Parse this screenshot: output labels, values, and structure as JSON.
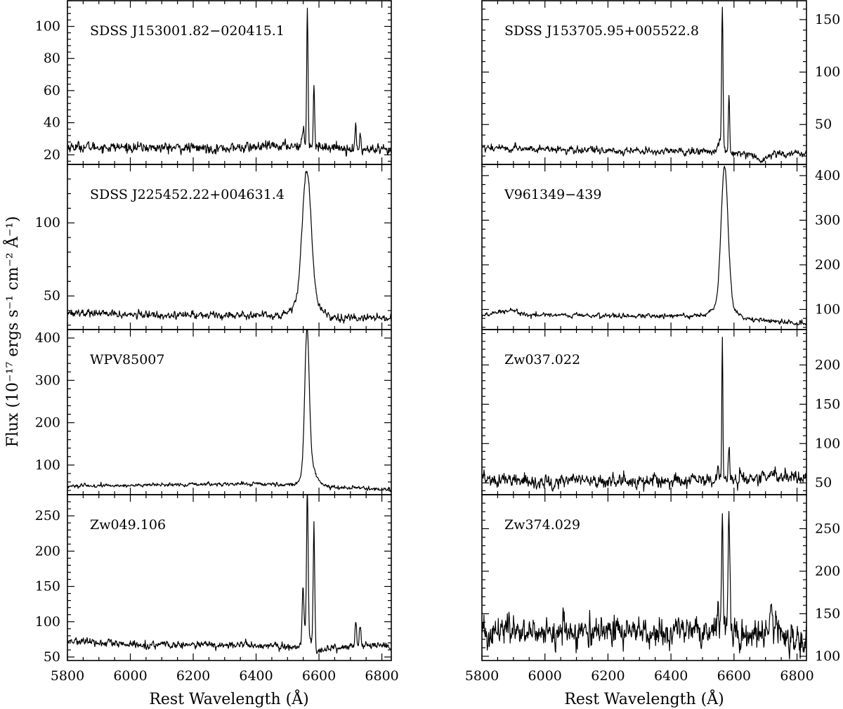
{
  "chart_data": [
    {
      "type": "line",
      "panel": "left-1",
      "title": "SDSS J153001.82−020415.1",
      "xlim": [
        5800,
        6830
      ],
      "ylim": [
        14,
        116
      ],
      "yticks": [
        20,
        40,
        60,
        80,
        100
      ],
      "series": [
        {
          "continuum": [
            [
              5800,
              25
            ],
            [
              6300,
              24
            ],
            [
              6540,
              26
            ],
            [
              6700,
              24
            ],
            [
              6830,
              22
            ]
          ],
          "noise": 1.8,
          "lines": [
            {
              "center": 6550,
              "sigma": 3,
              "amp": 10
            },
            {
              "center": 6563,
              "sigma": 2.2,
              "amp": 88
            },
            {
              "center": 6584,
              "sigma": 2,
              "amp": 40
            },
            {
              "center": 6717,
              "sigma": 2,
              "amp": 14
            },
            {
              "center": 6731,
              "sigma": 2,
              "amp": 9
            }
          ]
        }
      ]
    },
    {
      "type": "line",
      "panel": "left-2",
      "title": "SDSS J225452.22+004631.4",
      "xlim": [
        5800,
        6830
      ],
      "ylim": [
        27,
        140
      ],
      "yticks": [
        50,
        100
      ],
      "series": [
        {
          "continuum": [
            [
              5800,
              39
            ],
            [
              6000,
              37
            ],
            [
              6400,
              37
            ],
            [
              6700,
              35
            ],
            [
              6830,
              35
            ]
          ],
          "noise": 1.5,
          "lines": [
            {
              "center": 6561,
              "sigma": 14,
              "amp": 88
            },
            {
              "center": 6561,
              "sigma": 35,
              "amp": 12
            }
          ]
        }
      ]
    },
    {
      "type": "line",
      "panel": "left-3",
      "title": "WPV85007",
      "xlim": [
        5800,
        6830
      ],
      "ylim": [
        30,
        420
      ],
      "yticks": [
        100,
        200,
        300,
        400
      ],
      "series": [
        {
          "continuum": [
            [
              5800,
              50
            ],
            [
              6100,
              53
            ],
            [
              6400,
              56
            ],
            [
              6600,
              50
            ],
            [
              6830,
              42
            ]
          ],
          "noise": 2.5,
          "lines": [
            {
              "center": 6562,
              "sigma": 7,
              "amp": 330
            },
            {
              "center": 6570,
              "sigma": 20,
              "amp": 50
            }
          ]
        }
      ]
    },
    {
      "type": "line",
      "panel": "left-4",
      "title": "Zw049.106",
      "xlim": [
        5800,
        6830
      ],
      "ylim": [
        45,
        280
      ],
      "yticks": [
        50,
        100,
        150,
        200,
        250
      ],
      "series": [
        {
          "continuum": [
            [
              5800,
              73
            ],
            [
              6000,
              67
            ],
            [
              6400,
              67
            ],
            [
              6600,
              60
            ],
            [
              6700,
              66
            ],
            [
              6830,
              64
            ]
          ],
          "noise": 3,
          "lines": [
            {
              "center": 6549,
              "sigma": 2.5,
              "amp": 75
            },
            {
              "center": 6563,
              "sigma": 2.5,
              "amp": 205
            },
            {
              "center": 6584,
              "sigma": 2.5,
              "amp": 170
            },
            {
              "center": 6560,
              "sigma": 12,
              "amp": 25
            },
            {
              "center": 6717,
              "sigma": 2.5,
              "amp": 32
            },
            {
              "center": 6731,
              "sigma": 2.5,
              "amp": 28
            }
          ]
        }
      ]
    },
    {
      "type": "line",
      "panel": "right-1",
      "title": "SDSS J153705.95+005522.8",
      "xlim": [
        5800,
        6830
      ],
      "ylim": [
        12,
        168
      ],
      "yticks": [
        50,
        100,
        150
      ],
      "series": [
        {
          "continuum": [
            [
              5800,
              28
            ],
            [
              6200,
              25
            ],
            [
              6540,
              24
            ],
            [
              6660,
              22
            ],
            [
              6690,
              15
            ],
            [
              6720,
              22
            ],
            [
              6830,
              22
            ]
          ],
          "noise": 2,
          "lines": [
            {
              "center": 6563,
              "sigma": 2.2,
              "amp": 130
            },
            {
              "center": 6584,
              "sigma": 2,
              "amp": 55
            },
            {
              "center": 6558,
              "sigma": 8,
              "amp": 12
            }
          ]
        }
      ]
    },
    {
      "type": "line",
      "panel": "right-2",
      "title": "V961349−439",
      "xlim": [
        5800,
        6830
      ],
      "ylim": [
        55,
        425
      ],
      "yticks": [
        100,
        200,
        300,
        400
      ],
      "series": [
        {
          "continuum": [
            [
              5800,
              85
            ],
            [
              5890,
              100
            ],
            [
              5950,
              88
            ],
            [
              6300,
              85
            ],
            [
              6540,
              87
            ],
            [
              6700,
              75
            ],
            [
              6830,
              68
            ]
          ],
          "noise": 3,
          "lines": [
            {
              "center": 6570,
              "sigma": 11,
              "amp": 310
            },
            {
              "center": 6570,
              "sigma": 30,
              "amp": 25
            }
          ]
        }
      ]
    },
    {
      "type": "line",
      "panel": "right-3",
      "title": "Zw037.022",
      "xlim": [
        5800,
        6830
      ],
      "ylim": [
        35,
        245
      ],
      "yticks": [
        50,
        100,
        150,
        200
      ],
      "series": [
        {
          "continuum": [
            [
              5800,
              53
            ],
            [
              6200,
              52
            ],
            [
              6500,
              53
            ],
            [
              6700,
              58
            ],
            [
              6830,
              58
            ]
          ],
          "noise": 5,
          "lines": [
            {
              "center": 6549,
              "sigma": 2,
              "amp": 20
            },
            {
              "center": 6563,
              "sigma": 1.7,
              "amp": 185
            },
            {
              "center": 6584,
              "sigma": 1.8,
              "amp": 40
            },
            {
              "center": 6717,
              "sigma": 3,
              "amp": 15
            },
            {
              "center": 6731,
              "sigma": 3,
              "amp": 13
            }
          ]
        }
      ]
    },
    {
      "type": "line",
      "panel": "right-4",
      "title": "Zw374.029",
      "xlim": [
        5800,
        6830
      ],
      "ylim": [
        95,
        290
      ],
      "yticks": [
        100,
        150,
        200,
        250
      ],
      "series": [
        {
          "continuum": [
            [
              5800,
              128
            ],
            [
              6200,
              128
            ],
            [
              6500,
              130
            ],
            [
              6700,
              125
            ],
            [
              6830,
              118
            ]
          ],
          "noise": 10,
          "lines": [
            {
              "center": 6549,
              "sigma": 3,
              "amp": 30
            },
            {
              "center": 6563,
              "sigma": 2.5,
              "amp": 140
            },
            {
              "center": 6584,
              "sigma": 2.5,
              "amp": 150
            },
            {
              "center": 6717,
              "sigma": 3,
              "amp": 30
            },
            {
              "center": 6731,
              "sigma": 3,
              "amp": 25
            }
          ]
        }
      ]
    }
  ],
  "axes": {
    "xticks": [
      5800,
      6000,
      6200,
      6400,
      6600,
      6800
    ],
    "xlabel": "Rest Wavelength (Å)",
    "ylabel": "Flux (10⁻¹⁷ ergs s⁻¹ cm⁻² Å⁻¹)"
  }
}
